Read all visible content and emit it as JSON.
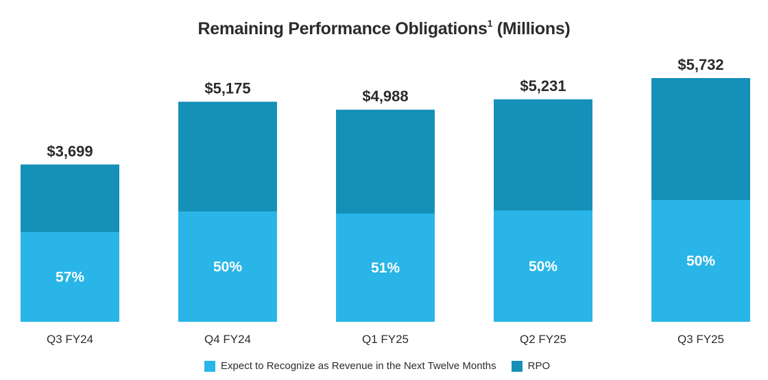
{
  "chart_data": {
    "type": "bar",
    "stacked": true,
    "title": "Remaining Performance Obligations",
    "title_superscript": "1",
    "title_suffix": "(Millions)",
    "categories": [
      "Q3 FY24",
      "Q4 FY24",
      "Q1 FY25",
      "Q2 FY25",
      "Q3 FY25"
    ],
    "totals": [
      3699,
      5175,
      4988,
      5231,
      5732
    ],
    "total_labels": [
      "$3,699",
      "$5,175",
      "$4,988",
      "$5,231",
      "$5,732"
    ],
    "next_twelve_months_pct": [
      57,
      50,
      51,
      50,
      50
    ],
    "pct_labels": [
      "57%",
      "50%",
      "51%",
      "50%",
      "50%"
    ],
    "series": [
      {
        "name": "Expect to Recognize as Revenue in the Next Twelve Months",
        "color": "#29B5E8"
      },
      {
        "name": "RPO",
        "color": "#1590B8"
      }
    ],
    "ylim": [
      0,
      5732
    ],
    "grid": false,
    "legend_position": "bottom-center"
  }
}
